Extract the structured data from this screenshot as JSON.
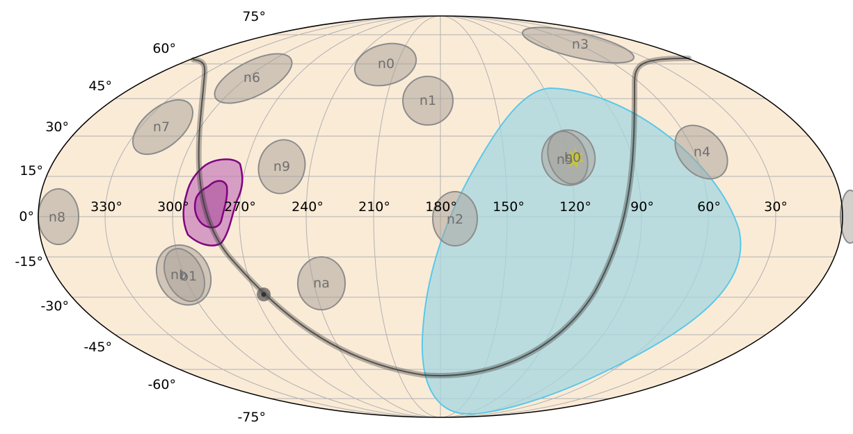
{
  "projection": "Aitoff/Mollweide-style equal-area all-sky map",
  "colors": {
    "sky_fill": "#faebd7",
    "sky_border": "#000000",
    "grid": "#b0b0b0",
    "detector_fill": "#a89f98",
    "detector_edge": "#8c8c8c",
    "detector_label": "#6f6f6f",
    "skymap_fill": "#a6d7e0",
    "skymap_edge": "#5ac8e8",
    "contour_outer_fill": "#c77dbb",
    "contour_edge": "#800080",
    "contour_inner_fill": "#b561a7",
    "track_color": "#3a3a3a",
    "source_color": "#c8c832"
  },
  "longitude_labels": [
    "330°",
    "300°",
    "270°",
    "240°",
    "210°",
    "180°",
    "150°",
    "120°",
    "90°",
    "60°",
    "30°"
  ],
  "latitude_labels": [
    "75°",
    "60°",
    "45°",
    "30°",
    "15°",
    "0°",
    "-15°",
    "-30°",
    "-45°",
    "-60°",
    "-75°"
  ],
  "detectors": [
    {
      "name": "n0"
    },
    {
      "name": "n1"
    },
    {
      "name": "n2"
    },
    {
      "name": "n3"
    },
    {
      "name": "n4"
    },
    {
      "name": "n5"
    },
    {
      "name": "n6"
    },
    {
      "name": "n7"
    },
    {
      "name": "n8"
    },
    {
      "name": "n9"
    },
    {
      "name": "na"
    },
    {
      "name": "nb"
    },
    {
      "name": "b0"
    },
    {
      "name": "b1"
    }
  ]
}
